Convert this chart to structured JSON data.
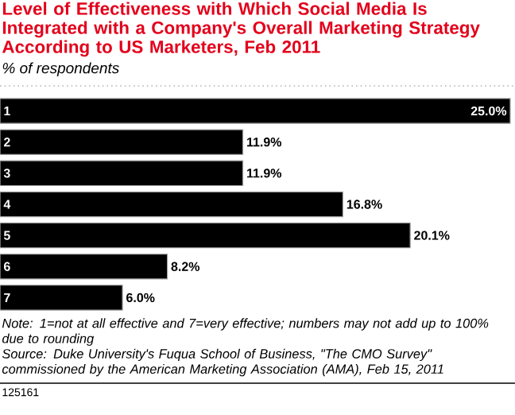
{
  "chart_data": {
    "type": "bar",
    "orientation": "horizontal",
    "title": "Level of Effectiveness with Which Social Media Is Integrated with a Company's Overall Marketing Strategy According to US Marketers, Feb 2011",
    "subtitle": "% of respondents",
    "categories": [
      "1",
      "2",
      "3",
      "4",
      "5",
      "6",
      "7"
    ],
    "values": [
      25.0,
      11.9,
      11.9,
      16.8,
      20.1,
      8.2,
      6.0
    ],
    "value_labels": [
      "25.0%",
      "11.9%",
      "11.9%",
      "16.8%",
      "20.1%",
      "8.2%",
      "6.0%"
    ],
    "color": "#000000",
    "annotations": [
      "Note: 1=not at all effective and 7=very effective; numbers may not add up to 100% due to rounding",
      "Source: Duke University's Fuqua School of Business, \"The CMO Survey\" commissioned by the American Marketing Association (AMA), Feb 15, 2011",
      "125161"
    ]
  }
}
